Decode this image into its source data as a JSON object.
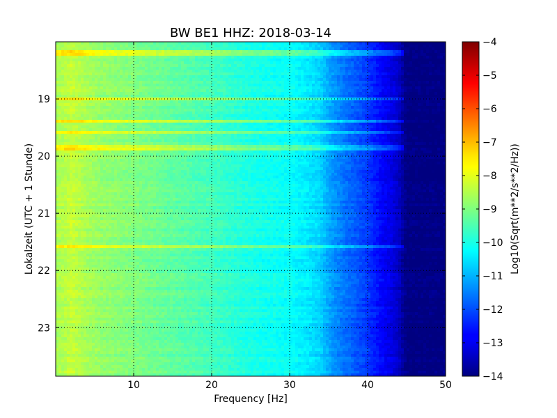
{
  "chart_data": {
    "type": "heatmap",
    "title": "BW BE1 HHZ: 2018-03-14",
    "xlabel": "Frequency [Hz]",
    "ylabel": "Lokalzeit (UTC + 1 Stunde)",
    "xlim": [
      0,
      50
    ],
    "ylim": [
      18.0,
      23.85
    ],
    "y_inverted": true,
    "x_ticks": [
      10,
      20,
      30,
      40,
      50
    ],
    "y_ticks": [
      19,
      20,
      21,
      22,
      23
    ],
    "grid": true,
    "colormap": "jet",
    "colorbar": {
      "label": "Log10(Sqrt(m**2/s**2/Hz))",
      "range": [
        -14,
        -4
      ],
      "ticks": [
        -4,
        -5,
        -6,
        -7,
        -8,
        -9,
        -10,
        -11,
        -12,
        -13,
        -14
      ]
    },
    "spectral_profile": {
      "frequency_hz": [
        0,
        1,
        2,
        4,
        6,
        8,
        10,
        15,
        20,
        25,
        30,
        32,
        34,
        35,
        36,
        38,
        40,
        41,
        42,
        43,
        44,
        44.5,
        45,
        50
      ],
      "log10_psd": [
        -8.6,
        -8.5,
        -8.3,
        -8.6,
        -8.8,
        -8.9,
        -9.0,
        -9.3,
        -9.6,
        -10.0,
        -10.2,
        -10.4,
        -10.7,
        -11.1,
        -11.4,
        -11.8,
        -12.2,
        -12.5,
        -12.8,
        -13.0,
        -13.3,
        -13.7,
        -14.0,
        -14.0
      ]
    },
    "bright_bands_time": [
      18.2,
      19.0,
      19.4,
      19.6,
      19.85,
      21.6
    ],
    "bright_band_max_frequency_hz": 44.5
  }
}
